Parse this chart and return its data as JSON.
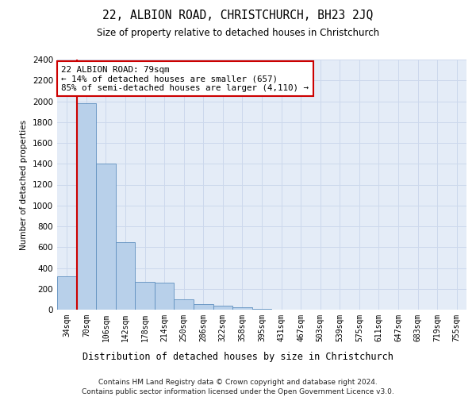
{
  "title": "22, ALBION ROAD, CHRISTCHURCH, BH23 2JQ",
  "subtitle": "Size of property relative to detached houses in Christchurch",
  "xlabel": "Distribution of detached houses by size in Christchurch",
  "ylabel": "Number of detached properties",
  "footnote1": "Contains HM Land Registry data © Crown copyright and database right 2024.",
  "footnote2": "Contains public sector information licensed under the Open Government Licence v3.0.",
  "bar_labels": [
    "34sqm",
    "70sqm",
    "106sqm",
    "142sqm",
    "178sqm",
    "214sqm",
    "250sqm",
    "286sqm",
    "322sqm",
    "358sqm",
    "395sqm",
    "431sqm",
    "467sqm",
    "503sqm",
    "539sqm",
    "575sqm",
    "611sqm",
    "647sqm",
    "683sqm",
    "719sqm",
    "755sqm"
  ],
  "bar_values": [
    320,
    1980,
    1400,
    650,
    270,
    260,
    100,
    50,
    38,
    22,
    10,
    0,
    0,
    0,
    0,
    0,
    0,
    0,
    0,
    0,
    0
  ],
  "bar_color": "#b8d0ea",
  "bar_edgecolor": "#6090c0",
  "red_line_x": 1,
  "ylim": [
    0,
    2400
  ],
  "yticks": [
    0,
    200,
    400,
    600,
    800,
    1000,
    1200,
    1400,
    1600,
    1800,
    2000,
    2200,
    2400
  ],
  "annotation_text": "22 ALBION ROAD: 79sqm\n← 14% of detached houses are smaller (657)\n85% of semi-detached houses are larger (4,110) →",
  "annotation_box_color": "#ffffff",
  "annotation_box_edgecolor": "#cc0000",
  "subject_line_color": "#cc0000",
  "grid_color": "#ccd8ec",
  "background_color": "#e4ecf7"
}
